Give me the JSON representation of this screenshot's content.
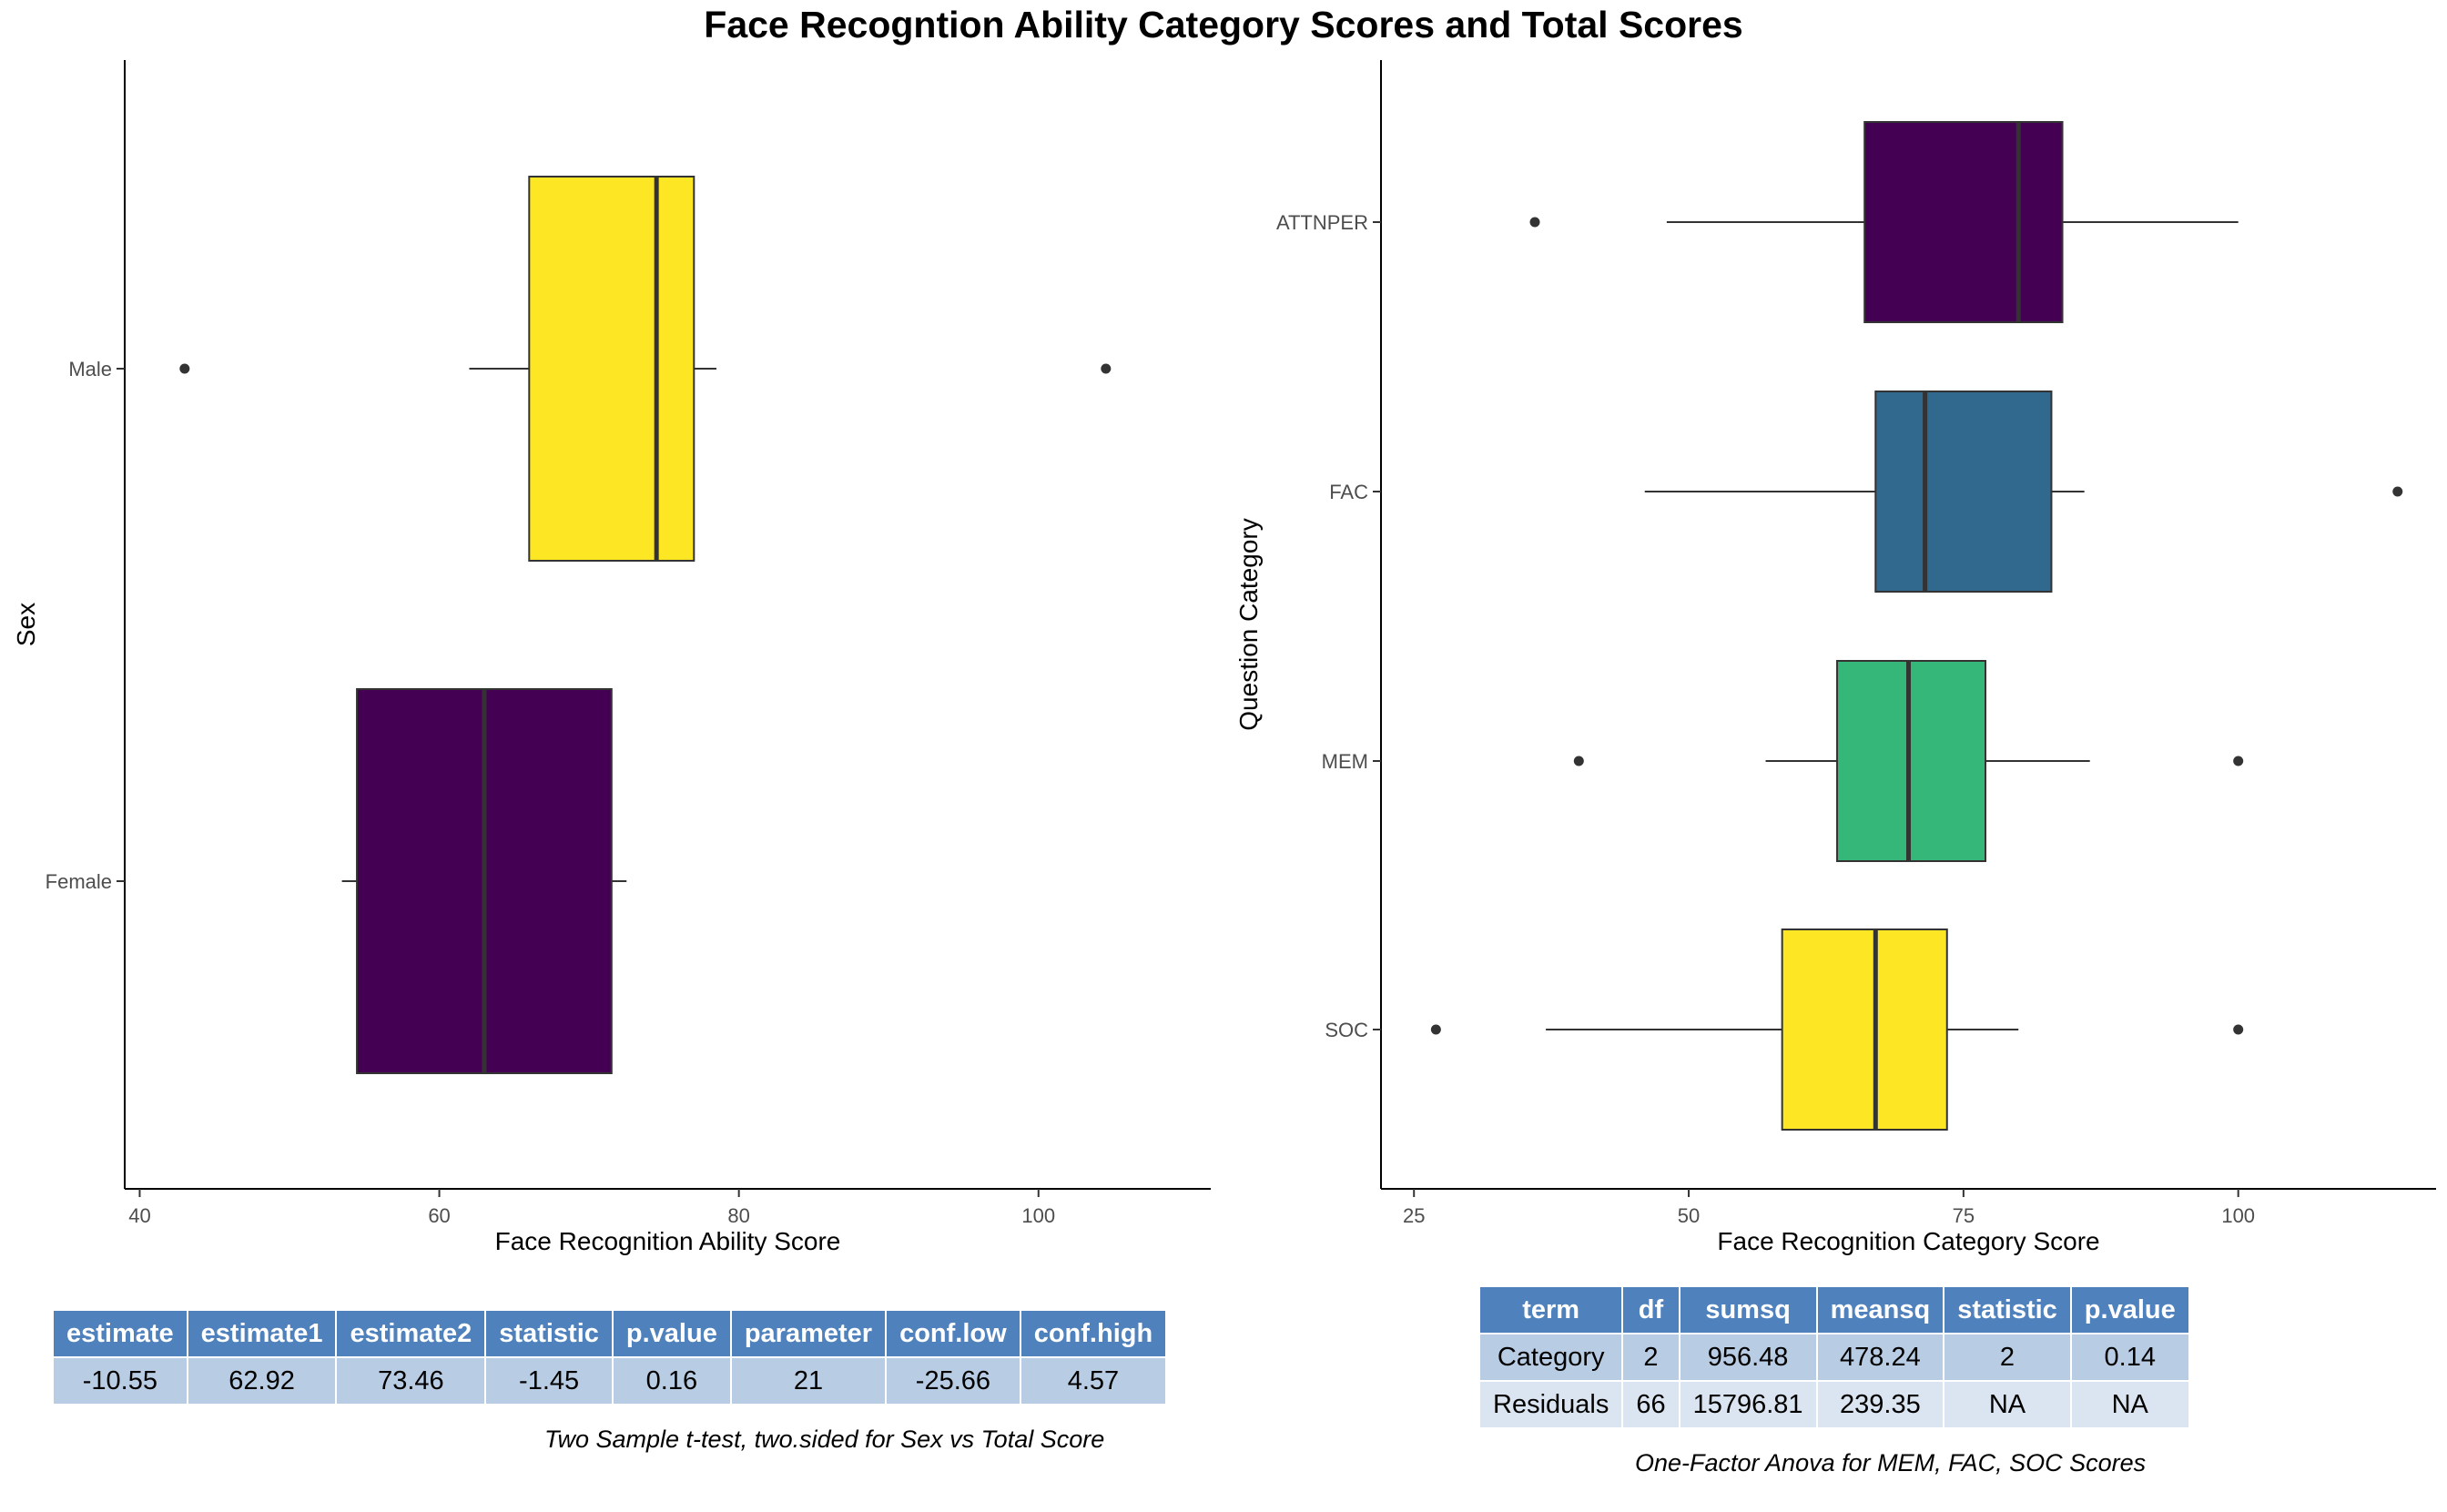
{
  "title": "Face Recogntion Ability Category Scores and Total Scores",
  "chart_data": [
    {
      "type": "boxplot",
      "orientation": "horizontal",
      "xlabel": "Face Recognition Ability Score",
      "ylabel": "Sex",
      "xlim": [
        39,
        111.5
      ],
      "xticks": [
        40,
        60,
        80,
        100
      ],
      "grid": false,
      "legend": "none",
      "categories": [
        "Male",
        "Female"
      ],
      "boxes": [
        {
          "category": "Male",
          "min": 62,
          "q1": 66,
          "median": 74.5,
          "q3": 77,
          "max": 78.5,
          "outliers": [
            43,
            104.5
          ],
          "color": "#fde725"
        },
        {
          "category": "Female",
          "min": 53.5,
          "q1": 54.5,
          "median": 63,
          "q3": 71.5,
          "max": 72.5,
          "outliers": [],
          "color": "#440154"
        }
      ]
    },
    {
      "type": "boxplot",
      "orientation": "horizontal",
      "xlabel": "Face Recognition Category Score",
      "ylabel": "Question Category",
      "xlim": [
        22,
        118
      ],
      "xticks": [
        25,
        50,
        75,
        100
      ],
      "grid": false,
      "legend": "none",
      "categories": [
        "ATTNPER",
        "FAC",
        "MEM",
        "SOC"
      ],
      "boxes": [
        {
          "category": "ATTNPER",
          "min": 48,
          "q1": 66,
          "median": 80,
          "q3": 84,
          "max": 100,
          "outliers": [
            36
          ],
          "color": "#440154"
        },
        {
          "category": "FAC",
          "min": 46,
          "q1": 67,
          "median": 71.5,
          "q3": 83,
          "max": 86,
          "outliers": [
            114.5
          ],
          "color": "#31688e"
        },
        {
          "category": "MEM",
          "min": 57,
          "q1": 63.5,
          "median": 70,
          "q3": 77,
          "max": 86.5,
          "outliers": [
            40,
            100
          ],
          "color": "#35b779"
        },
        {
          "category": "SOC",
          "min": 37,
          "q1": 58.5,
          "median": 67,
          "q3": 73.5,
          "max": 80,
          "outliers": [
            27,
            100
          ],
          "color": "#fde725"
        }
      ]
    }
  ],
  "tables": {
    "ttest": {
      "headers": [
        "estimate",
        "estimate1",
        "estimate2",
        "statistic",
        "p.value",
        "parameter",
        "conf.low",
        "conf.high"
      ],
      "rows": [
        [
          "-10.55",
          "62.92",
          "73.46",
          "-1.45",
          "0.16",
          "21",
          "-25.66",
          "4.57"
        ]
      ],
      "caption": "Two Sample t-test, two.sided for Sex vs Total Score"
    },
    "anova": {
      "headers": [
        "term",
        "df",
        "sumsq",
        "meansq",
        "statistic",
        "p.value"
      ],
      "rows": [
        [
          "Category",
          "2",
          "956.48",
          "478.24",
          "2",
          "0.14"
        ],
        [
          "Residuals",
          "66",
          "15796.81",
          "239.35",
          "NA",
          "NA"
        ]
      ],
      "caption": "One-Factor Anova for MEM, FAC, SOC Scores"
    }
  }
}
